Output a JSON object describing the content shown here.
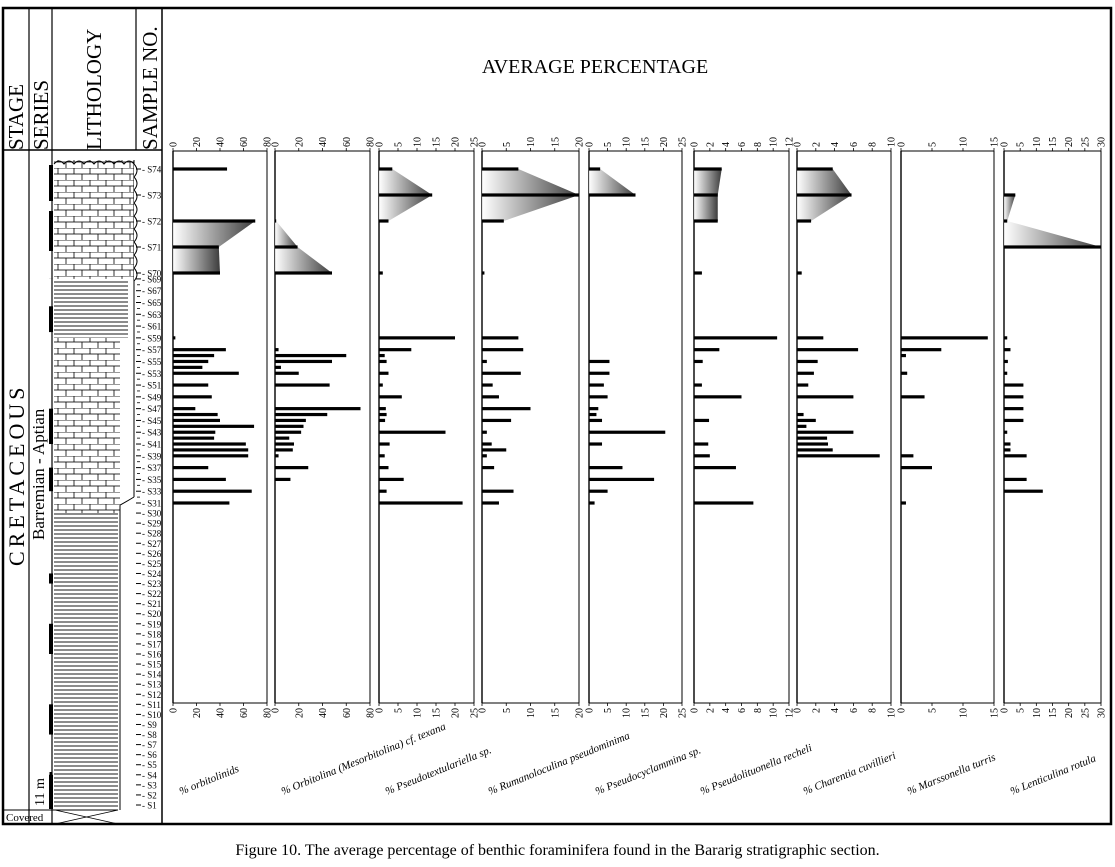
{
  "figure": {
    "headers": {
      "stage": "STAGE",
      "series": "SERIES",
      "lithology": "LITHOLOGY",
      "sample_no": "SAMPLE NO.",
      "main": "AVERAGE  PERCENTAGE"
    },
    "stage_name": "CRETACEOUS",
    "series_name": "Barremian - Aptian",
    "scale_label": "11 m",
    "covered_label": "Covered",
    "caption": "Figure 10. The average percentage of benthic foraminifera found in the Bararig stratigraphic section.",
    "samples": [
      "S1",
      "S2",
      "S3",
      "S4",
      "S5",
      "S6",
      "S7",
      "S8",
      "S9",
      "S10",
      "S11",
      "S12",
      "S13",
      "S14",
      "S15",
      "S16",
      "S17",
      "S18",
      "S19",
      "S20",
      "S21",
      "S22",
      "S23",
      "S24",
      "S25",
      "S26",
      "S27",
      "S28",
      "S29",
      "S30",
      "S31",
      "S33",
      "S35",
      "S37",
      "S39",
      "S41",
      "S43",
      "S45",
      "S47",
      "S49",
      "S51",
      "S53",
      "S55",
      "S57",
      "S59",
      "S61",
      "S63",
      "S65",
      "S67",
      "S69",
      "S70",
      "S71",
      "S72",
      "S73",
      "S74"
    ]
  },
  "chart_data": [
    {
      "type": "bar",
      "label": "% orbitolinids",
      "xlim": [
        0,
        80
      ],
      "ticks": [
        0,
        20,
        40,
        60,
        80
      ],
      "samples": [
        "S31",
        "S33",
        "S35",
        "S37",
        "S39",
        "S40",
        "S41",
        "S42",
        "S43",
        "S44",
        "S45",
        "S46",
        "S47",
        "S49",
        "S51",
        "S53",
        "S54",
        "S55",
        "S56",
        "S57",
        "S59",
        "S70",
        "S71",
        "S72",
        "S74"
      ],
      "values": [
        48,
        67,
        45,
        30,
        64,
        64,
        62,
        35,
        36,
        69,
        40,
        38,
        19,
        33,
        30,
        56,
        25,
        30,
        35,
        45,
        2,
        40,
        39,
        70,
        46
      ]
    },
    {
      "type": "bar",
      "label": "% Orbitolina (Mesorbitolina) cf. texana",
      "xlim": [
        0,
        80
      ],
      "ticks": [
        0,
        20,
        40,
        60,
        80
      ],
      "samples": [
        "S35",
        "S37",
        "S39",
        "S40",
        "S41",
        "S42",
        "S43",
        "S44",
        "S45",
        "S46",
        "S47",
        "S51",
        "S53",
        "S54",
        "S55",
        "S56",
        "S57",
        "S70",
        "S71",
        "S72"
      ],
      "values": [
        13,
        28,
        3,
        15,
        16,
        12,
        22,
        24,
        26,
        44,
        72,
        46,
        20,
        5,
        48,
        60,
        3,
        48,
        19,
        1
      ]
    },
    {
      "type": "bar",
      "label": "% Pseudotextulariella sp.",
      "xlim": [
        0,
        25
      ],
      "ticks": [
        0,
        5,
        10,
        15,
        20,
        25
      ],
      "samples": [
        "S31",
        "S33",
        "S35",
        "S37",
        "S39",
        "S41",
        "S43",
        "S45",
        "S46",
        "S47",
        "S49",
        "S51",
        "S53",
        "S55",
        "S56",
        "S57",
        "S59",
        "S70",
        "S72",
        "S73",
        "S74"
      ],
      "values": [
        22,
        2,
        6.5,
        2.5,
        1.5,
        2.8,
        17.5,
        1.6,
        2,
        1.8,
        6,
        1,
        2.5,
        2,
        1.5,
        8.5,
        20,
        1,
        2.5,
        14,
        3.5
      ]
    },
    {
      "type": "bar",
      "label": "% Rumanoloculina pseudominima",
      "xlim": [
        0,
        20
      ],
      "ticks": [
        0,
        5,
        10,
        15,
        20
      ],
      "samples": [
        "S31",
        "S33",
        "S37",
        "S39",
        "S40",
        "S41",
        "S43",
        "S45",
        "S47",
        "S49",
        "S51",
        "S53",
        "S55",
        "S57",
        "S59",
        "S70",
        "S72",
        "S73",
        "S74"
      ],
      "values": [
        3.5,
        6.5,
        2.5,
        1,
        5,
        2,
        1,
        6,
        10,
        3.5,
        2.2,
        8,
        1,
        8.5,
        7.5,
        0.5,
        4.5,
        20,
        7.5
      ]
    },
    {
      "type": "bar",
      "label": "% Pseudocyclammina sp.",
      "xlim": [
        0,
        25
      ],
      "ticks": [
        0,
        5,
        10,
        15,
        20,
        25
      ],
      "samples": [
        "S31",
        "S33",
        "S35",
        "S37",
        "S41",
        "S43",
        "S45",
        "S46",
        "S47",
        "S49",
        "S51",
        "S53",
        "S55",
        "S73",
        "S74"
      ],
      "values": [
        1.5,
        5,
        17.5,
        9,
        3.5,
        20.5,
        3.5,
        2,
        2.5,
        5,
        4,
        5.5,
        5.5,
        12.5,
        3
      ]
    },
    {
      "type": "bar",
      "label": "% Pseudolituonella recheli",
      "xlim": [
        0,
        12
      ],
      "ticks": [
        0,
        2,
        4,
        6,
        8,
        10,
        12
      ],
      "samples": [
        "S31",
        "S37",
        "S39",
        "S41",
        "S45",
        "S49",
        "S51",
        "S55",
        "S57",
        "S59",
        "S70",
        "S72",
        "S73",
        "S74"
      ],
      "values": [
        7.5,
        5.3,
        2,
        1.8,
        1.9,
        6,
        1,
        1.1,
        3.2,
        10.5,
        1,
        3,
        3,
        3.5
      ]
    },
    {
      "type": "bar",
      "label": "% Charentia cuvillieri",
      "xlim": [
        0,
        10
      ],
      "ticks": [
        0,
        2,
        4,
        6,
        8,
        10
      ],
      "samples": [
        "S39",
        "S40",
        "S41",
        "S42",
        "S43",
        "S44",
        "S45",
        "S46",
        "S49",
        "S51",
        "S53",
        "S55",
        "S57",
        "S59",
        "S70",
        "S72",
        "S73",
        "S74"
      ],
      "values": [
        8.8,
        3.8,
        3.3,
        3.2,
        6,
        1,
        2,
        0.7,
        6,
        1.2,
        1.8,
        2.2,
        6.5,
        2.8,
        0.5,
        1.5,
        5.8,
        3.8
      ]
    },
    {
      "type": "bar",
      "label": "% Marssonella turris",
      "xlim": [
        0,
        15
      ],
      "ticks": [
        0,
        5,
        10,
        15
      ],
      "samples": [
        "S31",
        "S37",
        "S39",
        "S49",
        "S53",
        "S56",
        "S57",
        "S59"
      ],
      "values": [
        0.8,
        5,
        2,
        3.8,
        1,
        0.8,
        6.5,
        14
      ]
    },
    {
      "type": "bar",
      "label": "% Lenticulina rotula",
      "xlim": [
        0,
        30
      ],
      "ticks": [
        0,
        5,
        10,
        15,
        20,
        25,
        30
      ],
      "samples": [
        "S33",
        "S35",
        "S39",
        "S40",
        "S41",
        "S43",
        "S45",
        "S47",
        "S49",
        "S51",
        "S53",
        "S55",
        "S57",
        "S59",
        "S71",
        "S72",
        "S73"
      ],
      "values": [
        12,
        7,
        7,
        2,
        2,
        1,
        6,
        6,
        6,
        6,
        1,
        1.2,
        2,
        1,
        30,
        1,
        3.5
      ]
    }
  ]
}
